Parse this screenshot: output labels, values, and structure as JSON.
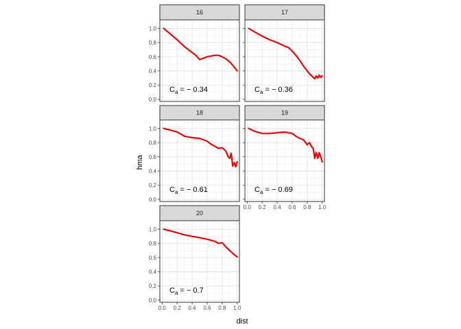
{
  "chart_data": {
    "type": "line",
    "facet_variable": "",
    "xlabel": "dist",
    "ylabel": "hma",
    "xlim": [
      -0.03,
      1.03
    ],
    "ylim": [
      -0.03,
      1.12
    ],
    "x_ticks": [
      0.0,
      0.2,
      0.4,
      0.6,
      0.8,
      1.0
    ],
    "x_tick_labels": [
      "0.0",
      "0.2",
      "0.4",
      "0.6",
      "0.8",
      "1.0"
    ],
    "y_ticks": [
      0.0,
      0.2,
      0.4,
      0.6,
      0.8,
      1.0
    ],
    "y_tick_labels": [
      "0.0",
      "0.2",
      "0.4",
      "0.6",
      "0.8",
      "1.0"
    ],
    "grid": true,
    "theme": "bw",
    "line_color": "#ee0000",
    "panels": [
      {
        "label": "16",
        "annotation": {
          "symbol": "C",
          "subscript": "a",
          "text": " = − 0.34"
        },
        "x": [
          0.02,
          0.1,
          0.2,
          0.3,
          0.4,
          0.45,
          0.5,
          0.55,
          0.6,
          0.65,
          0.7,
          0.75,
          0.8,
          0.85,
          0.9,
          0.95,
          1.0
        ],
        "y": [
          1.0,
          0.93,
          0.84,
          0.74,
          0.66,
          0.62,
          0.56,
          0.58,
          0.6,
          0.61,
          0.62,
          0.62,
          0.6,
          0.57,
          0.53,
          0.47,
          0.4
        ]
      },
      {
        "label": "17",
        "annotation": {
          "symbol": "C",
          "subscript": "a",
          "text": " = − 0.36"
        },
        "x": [
          0.02,
          0.1,
          0.2,
          0.3,
          0.4,
          0.5,
          0.55,
          0.6,
          0.65,
          0.7,
          0.75,
          0.8,
          0.83,
          0.86,
          0.9,
          0.92,
          0.94,
          0.96,
          0.98,
          1.0
        ],
        "y": [
          1.0,
          0.95,
          0.89,
          0.84,
          0.8,
          0.75,
          0.73,
          0.68,
          0.62,
          0.55,
          0.47,
          0.4,
          0.36,
          0.33,
          0.29,
          0.33,
          0.3,
          0.34,
          0.31,
          0.33
        ]
      },
      {
        "label": "18",
        "annotation": {
          "symbol": "C",
          "subscript": "a",
          "text": " = − 0.61"
        },
        "x": [
          0.02,
          0.1,
          0.2,
          0.3,
          0.4,
          0.5,
          0.6,
          0.65,
          0.7,
          0.75,
          0.8,
          0.85,
          0.88,
          0.9,
          0.92,
          0.94,
          0.96,
          0.98,
          1.0
        ],
        "y": [
          1.0,
          0.98,
          0.95,
          0.89,
          0.87,
          0.86,
          0.82,
          0.78,
          0.75,
          0.72,
          0.73,
          0.68,
          0.6,
          0.58,
          0.65,
          0.47,
          0.52,
          0.46,
          0.53
        ]
      },
      {
        "label": "19",
        "annotation": {
          "symbol": "C",
          "subscript": "a",
          "text": " = − 0.69"
        },
        "x": [
          0.02,
          0.1,
          0.2,
          0.3,
          0.4,
          0.5,
          0.6,
          0.65,
          0.7,
          0.75,
          0.8,
          0.83,
          0.86,
          0.88,
          0.9,
          0.92,
          0.94,
          0.96,
          0.98,
          1.0
        ],
        "y": [
          1.0,
          0.96,
          0.93,
          0.93,
          0.94,
          0.95,
          0.93,
          0.89,
          0.86,
          0.84,
          0.77,
          0.8,
          0.74,
          0.72,
          0.58,
          0.66,
          0.58,
          0.66,
          0.6,
          0.53
        ]
      },
      {
        "label": "20",
        "annotation": {
          "symbol": "C",
          "subscript": "a",
          "text": " = − 0.7"
        },
        "x": [
          0.02,
          0.1,
          0.2,
          0.3,
          0.4,
          0.5,
          0.6,
          0.7,
          0.75,
          0.8,
          0.85,
          0.9,
          0.95,
          1.0
        ],
        "y": [
          1.0,
          0.98,
          0.95,
          0.92,
          0.9,
          0.88,
          0.86,
          0.83,
          0.8,
          0.81,
          0.75,
          0.7,
          0.65,
          0.61
        ]
      }
    ]
  }
}
